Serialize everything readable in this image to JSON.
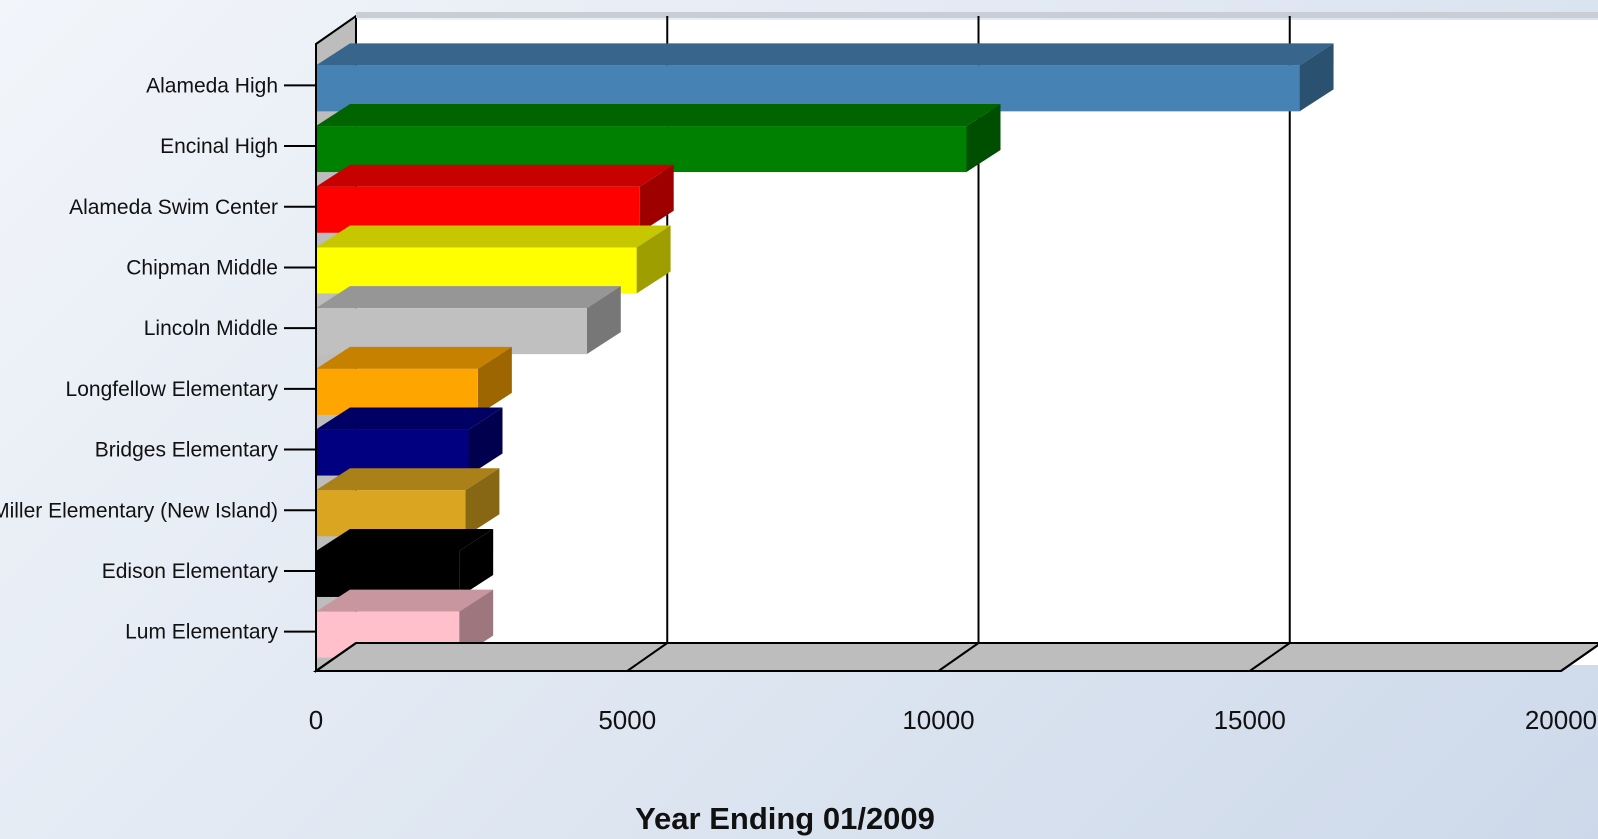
{
  "chart_data": {
    "type": "bar",
    "orientation": "horizontal",
    "style": "3d",
    "categories": [
      "Alameda High",
      "Encinal High",
      "Alameda Swim Center",
      "Chipman Middle",
      "Lincoln Middle",
      "Longfellow Elementary",
      "Bridges Elementary",
      "Miller Elementary (New Island)",
      "Edison Elementary",
      "Lum Elementary"
    ],
    "values": [
      15800,
      10450,
      5200,
      5150,
      4350,
      2600,
      2450,
      2400,
      2300,
      2300
    ],
    "colors": [
      "#4682b4",
      "#008000",
      "#ff0000",
      "#ffff00",
      "#c0c0c0",
      "#ffa500",
      "#000080",
      "#daa520",
      "#000000",
      "#ffc0cb"
    ],
    "xlabel": "Year Ending 01/2009",
    "ylabel": "",
    "xlim": [
      0,
      20000
    ],
    "xticks": [
      0,
      5000,
      10000,
      15000,
      20000
    ],
    "grid": true
  }
}
